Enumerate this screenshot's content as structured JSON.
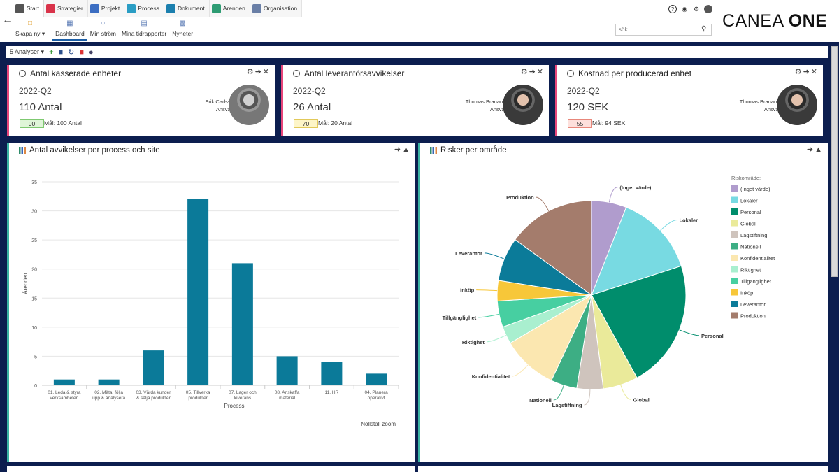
{
  "tabs": [
    {
      "label": "Start",
      "icon": "home-icon",
      "color": "#555555"
    },
    {
      "label": "Strategier",
      "icon": "strategy-icon",
      "color": "#d9334a"
    },
    {
      "label": "Projekt",
      "icon": "project-icon",
      "color": "#3c6ec2"
    },
    {
      "label": "Process",
      "icon": "process-icon",
      "color": "#2a9dc4"
    },
    {
      "label": "Dokument",
      "icon": "document-icon",
      "color": "#1b7fae"
    },
    {
      "label": "Ärenden",
      "icon": "issue-icon",
      "color": "#2e9c73"
    },
    {
      "label": "Organisation",
      "icon": "organisation-icon",
      "color": "#6a7fa6"
    }
  ],
  "subnav": {
    "create_label": "Skapa ny",
    "items": [
      {
        "label": "Dashboard"
      },
      {
        "label": "Min ström"
      },
      {
        "label": "Mina tidrapporter"
      },
      {
        "label": "Nyheter"
      }
    ]
  },
  "search": {
    "placeholder": "sök..."
  },
  "brand": {
    "name_light": "CANEA",
    "name_bold": "ONE"
  },
  "analyses": {
    "selector_label": "5 Analyser"
  },
  "kpis": [
    {
      "title": "Antal kasserade enheter",
      "period": "2022-Q2",
      "value": "110 Antal",
      "badge": "90",
      "badge_bg": "#dff5d8",
      "badge_border": "#7fc971",
      "goal": "Mål: 100 Antal",
      "person": "Erik Carlsson",
      "role": "Ansvarig"
    },
    {
      "title": "Antal leverantörsavvikelser",
      "period": "2022-Q2",
      "value": "26 Antal",
      "badge": "70",
      "badge_bg": "#fdf5c8",
      "badge_border": "#e2c95a",
      "goal": "Mål: 20 Antal",
      "person": "Thomas Branander",
      "role": "Ansvarig"
    },
    {
      "title": "Kostnad per producerad enhet",
      "period": "2022-Q2",
      "value": "120 SEK",
      "badge": "55",
      "badge_bg": "#fde0dc",
      "badge_border": "#e8877b",
      "goal": "Mål: 94 SEK",
      "person": "Thomas Branander",
      "role": "Ansvarig"
    }
  ],
  "bar_panel": {
    "title": "Antal avvikelser per process och site",
    "reset_label": "Nollställ zoom"
  },
  "pie_panel": {
    "title": "Risker per område"
  },
  "chart_data": [
    {
      "type": "bar",
      "title": "Antal avvikelser per process och site",
      "xlabel": "Process",
      "ylabel": "Ärenden",
      "ylim": [
        0,
        35
      ],
      "yticks": [
        0,
        5,
        10,
        15,
        20,
        25,
        30,
        35
      ],
      "categories": [
        [
          "01. Leda & styra",
          "verksamheten"
        ],
        [
          "02. Mäta, följa",
          "upp & analysera"
        ],
        [
          "03. Vårda kunder",
          "& sälja produkter"
        ],
        [
          "05. Tillverka",
          "produkter"
        ],
        [
          "07. Lager och",
          "leverans"
        ],
        [
          "08. Anskaffa",
          "material"
        ],
        [
          "11. HR"
        ],
        [
          "04. Planera",
          "operativt"
        ]
      ],
      "values": [
        1,
        1,
        6,
        32,
        21,
        5,
        4,
        2
      ],
      "color": "#0b7a99"
    },
    {
      "type": "pie",
      "title": "Risker per område",
      "legend_title": "Riskområde:",
      "slices": [
        {
          "label": "(Inget värde)",
          "value": 6,
          "color": "#b09ccd"
        },
        {
          "label": "Lokaler",
          "value": 14,
          "color": "#78dae2"
        },
        {
          "label": "Personal",
          "value": 22,
          "color": "#008d6c"
        },
        {
          "label": "Global",
          "value": 6,
          "color": "#eaea9a"
        },
        {
          "label": "Lagstiftning",
          "value": 4.5,
          "color": "#cfc4bd"
        },
        {
          "label": "Nationell",
          "value": 4.5,
          "color": "#3dae84"
        },
        {
          "label": "Konfidentialitet",
          "value": 9.5,
          "color": "#fbe7b0"
        },
        {
          "label": "Riktighet",
          "value": 3,
          "color": "#a9efcf"
        },
        {
          "label": "Tillgänglighet",
          "value": 4.5,
          "color": "#47cfa1"
        },
        {
          "label": "Inköp",
          "value": 3.5,
          "color": "#f7c739"
        },
        {
          "label": "Leverantör",
          "value": 7.5,
          "color": "#0b7b99"
        },
        {
          "label": "Produktion",
          "value": 15,
          "color": "#a47c6c"
        }
      ]
    }
  ]
}
